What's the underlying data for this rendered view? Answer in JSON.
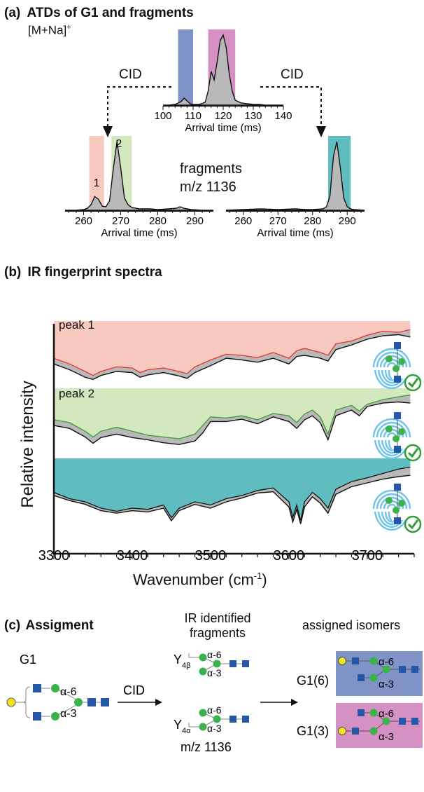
{
  "panel_a": {
    "label": "(a)",
    "title": "ATDs of G1 and fragments",
    "ion": "[M+Na]",
    "ion_sup": "+",
    "cid_left": "CID",
    "cid_right": "CID",
    "fragments_line1": "fragments",
    "fragments_line2": "m/z 1136",
    "peak1": "1",
    "peak2": "2"
  },
  "panel_b": {
    "label": "(b)",
    "title": "IR fingerprint spectra",
    "peak1": "peak 1",
    "peak2": "peak 2"
  },
  "panel_c": {
    "label": "(c)",
    "title": "Assigment",
    "g1": "G1",
    "cid": "CID",
    "ir_line1": "IR identified",
    "ir_line2": "fragments",
    "assigned": "assigned isomers",
    "y4b": "Y",
    "y4b_sub": "4β",
    "y4a": "Y",
    "y4a_sub": "4α",
    "mz": "m/z 1136",
    "g16": "G1(6)",
    "g13": "G1(3)",
    "a6": "α-6",
    "a3": "α-3"
  },
  "colors": {
    "blue": "#7f93c7",
    "pink": "#d590c4",
    "salmon": "#f8c9bf",
    "green": "#d3e8bf",
    "teal": "#5fbcbf",
    "gray": "#b9b9b9",
    "red_line": "#e8322d",
    "green_line": "#3a9c33"
  },
  "chart_data": [
    {
      "type": "line",
      "name": "ATD parent",
      "xlabel": "Arrival time (ms)",
      "xlim": [
        100,
        140
      ],
      "xticks": [
        100,
        110,
        120,
        130,
        140
      ],
      "x": [
        100,
        102,
        104,
        106,
        107,
        108,
        109,
        110,
        112,
        114,
        115,
        116,
        117,
        118,
        119,
        120,
        121,
        122,
        123,
        124,
        126,
        128,
        130,
        132,
        134,
        136,
        138,
        140
      ],
      "y": [
        0,
        0,
        0.01,
        0.05,
        0.1,
        0.06,
        0.02,
        0.01,
        0.01,
        0.04,
        0.2,
        0.48,
        0.36,
        0.62,
        0.92,
        1.0,
        0.82,
        0.45,
        0.2,
        0.07,
        0.03,
        0.02,
        0.01,
        0.01,
        0,
        0,
        0,
        0
      ],
      "highlights": [
        {
          "from": 105,
          "to": 110,
          "color": "blue"
        },
        {
          "from": 115,
          "to": 124,
          "color": "pink"
        }
      ]
    },
    {
      "type": "line",
      "name": "ATD fragments left",
      "xlabel": "Arrival time (ms)",
      "xlim": [
        255,
        295
      ],
      "xticks": [
        260,
        270,
        280,
        290
      ],
      "peak_labels": [
        "1",
        "2"
      ],
      "x": [
        255,
        258,
        260,
        261,
        262,
        263,
        264,
        265,
        266,
        267,
        268,
        269,
        270,
        271,
        272,
        273,
        275,
        278,
        280,
        283,
        285,
        286,
        287,
        289,
        292,
        295
      ],
      "y": [
        0,
        0,
        0.01,
        0.03,
        0.08,
        0.2,
        0.16,
        0.06,
        0.05,
        0.14,
        0.6,
        1.0,
        0.62,
        0.18,
        0.08,
        0.04,
        0.02,
        0.02,
        0.01,
        0.02,
        0.03,
        0.05,
        0.03,
        0.01,
        0,
        0
      ],
      "highlights": [
        {
          "from": 261.5,
          "to": 265.5,
          "color": "salmon"
        },
        {
          "from": 267.5,
          "to": 273,
          "color": "green"
        }
      ]
    },
    {
      "type": "line",
      "name": "ATD fragments right",
      "xlabel": "Arrival time (ms)",
      "xlim": [
        255,
        295
      ],
      "xticks": [
        260,
        270,
        280,
        290
      ],
      "x": [
        255,
        260,
        265,
        270,
        275,
        278,
        280,
        283,
        284,
        285,
        286,
        287,
        288,
        289,
        290,
        291,
        292,
        295
      ],
      "y": [
        0,
        0.01,
        0.02,
        0.01,
        0.02,
        0.01,
        0.01,
        0.02,
        0.05,
        0.2,
        0.78,
        1.0,
        0.62,
        0.18,
        0.05,
        0.02,
        0.01,
        0
      ],
      "highlights": [
        {
          "from": 284.5,
          "to": 291,
          "color": "teal"
        }
      ]
    },
    {
      "type": "area",
      "name": "IR fingerprint spectra",
      "xlabel": "Wavenumber (cm",
      "xlabel_sup": "-1",
      "xlabel_end": ")",
      "ylabel": "Relative intensity",
      "xlim": [
        3300,
        3760
      ],
      "xticks": [
        3300,
        3400,
        3500,
        3600,
        3700
      ],
      "series": [
        {
          "name": "peak 1",
          "color": "salmon",
          "line_color": "red_line",
          "x": [
            3300,
            3320,
            3340,
            3350,
            3360,
            3380,
            3400,
            3410,
            3420,
            3440,
            3460,
            3470,
            3480,
            3500,
            3520,
            3540,
            3560,
            3580,
            3600,
            3610,
            3620,
            3640,
            3650,
            3660,
            3680,
            3700,
            3720,
            3740,
            3755
          ],
          "y": [
            0.45,
            0.35,
            0.22,
            0.15,
            0.22,
            0.3,
            0.28,
            0.2,
            0.25,
            0.28,
            0.22,
            0.18,
            0.3,
            0.42,
            0.52,
            0.5,
            0.46,
            0.55,
            0.45,
            0.58,
            0.62,
            0.55,
            0.5,
            0.7,
            0.75,
            0.85,
            0.92,
            0.9,
            0.95
          ],
          "y_ref": [
            0.35,
            0.25,
            0.12,
            0.08,
            0.15,
            0.22,
            0.2,
            0.12,
            0.16,
            0.2,
            0.14,
            0.1,
            0.2,
            0.32,
            0.45,
            0.42,
            0.38,
            0.45,
            0.35,
            0.48,
            0.5,
            0.45,
            0.4,
            0.6,
            0.68,
            0.78,
            0.84,
            0.86,
            0.82
          ]
        },
        {
          "name": "peak 2",
          "color": "green",
          "line_color": "green_line",
          "x": [
            3300,
            3320,
            3340,
            3350,
            3360,
            3380,
            3400,
            3420,
            3440,
            3460,
            3480,
            3490,
            3500,
            3520,
            3540,
            3560,
            3580,
            3600,
            3610,
            3620,
            3630,
            3640,
            3650,
            3660,
            3680,
            3690,
            3700,
            3720,
            3740,
            3755
          ],
          "y": [
            0.55,
            0.5,
            0.35,
            0.25,
            0.35,
            0.42,
            0.35,
            0.28,
            0.25,
            0.22,
            0.3,
            0.45,
            0.6,
            0.58,
            0.62,
            0.55,
            0.66,
            0.62,
            0.5,
            0.65,
            0.72,
            0.6,
            0.3,
            0.72,
            0.8,
            0.7,
            0.82,
            0.9,
            0.95,
            0.98
          ],
          "y_ref": [
            0.45,
            0.4,
            0.25,
            0.14,
            0.24,
            0.3,
            0.24,
            0.2,
            0.15,
            0.12,
            0.18,
            0.32,
            0.52,
            0.52,
            0.56,
            0.48,
            0.6,
            0.52,
            0.4,
            0.55,
            0.62,
            0.5,
            0.2,
            0.62,
            0.72,
            0.62,
            0.78,
            0.84,
            0.86,
            0.84
          ]
        },
        {
          "name": "",
          "color": "teal",
          "line_color": "black",
          "x": [
            3300,
            3320,
            3340,
            3360,
            3380,
            3400,
            3420,
            3440,
            3450,
            3460,
            3480,
            3500,
            3520,
            3540,
            3560,
            3580,
            3600,
            3605,
            3610,
            3615,
            3620,
            3630,
            3640,
            3650,
            3660,
            3680,
            3700,
            3720,
            3740,
            3755
          ],
          "y": [
            0.55,
            0.45,
            0.4,
            0.3,
            0.25,
            0.3,
            0.28,
            0.35,
            0.15,
            0.3,
            0.4,
            0.35,
            0.45,
            0.5,
            0.58,
            0.62,
            0.4,
            0.15,
            0.35,
            0.1,
            0.4,
            0.55,
            0.45,
            0.3,
            0.6,
            0.72,
            0.78,
            0.85,
            0.92,
            0.95
          ],
          "y_ref": [
            0.5,
            0.42,
            0.36,
            0.26,
            0.22,
            0.26,
            0.24,
            0.3,
            0.1,
            0.26,
            0.36,
            0.3,
            0.4,
            0.46,
            0.54,
            0.56,
            0.32,
            0.08,
            0.28,
            0.05,
            0.32,
            0.48,
            0.38,
            0.22,
            0.52,
            0.64,
            0.7,
            0.76,
            0.8,
            0.82
          ]
        }
      ]
    }
  ]
}
